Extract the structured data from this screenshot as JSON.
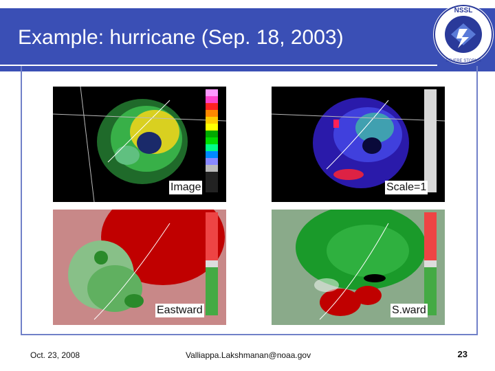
{
  "slide": {
    "title": "Example: hurricane (Sep. 18, 2003)",
    "accent_color": "#3a4fb5"
  },
  "logo": {
    "text": "NSSL · NATIONAL SEVERE STORMS LABORATORY",
    "icon": "nssl-logo"
  },
  "panels": [
    {
      "label": "Image"
    },
    {
      "label": "Scale=1"
    },
    {
      "label": "Eastward"
    },
    {
      "label": "S.ward"
    }
  ],
  "footer": {
    "date": "Oct. 23, 2008",
    "email": "Valliappa.Lakshmanan@noaa.gov",
    "page": "23"
  }
}
